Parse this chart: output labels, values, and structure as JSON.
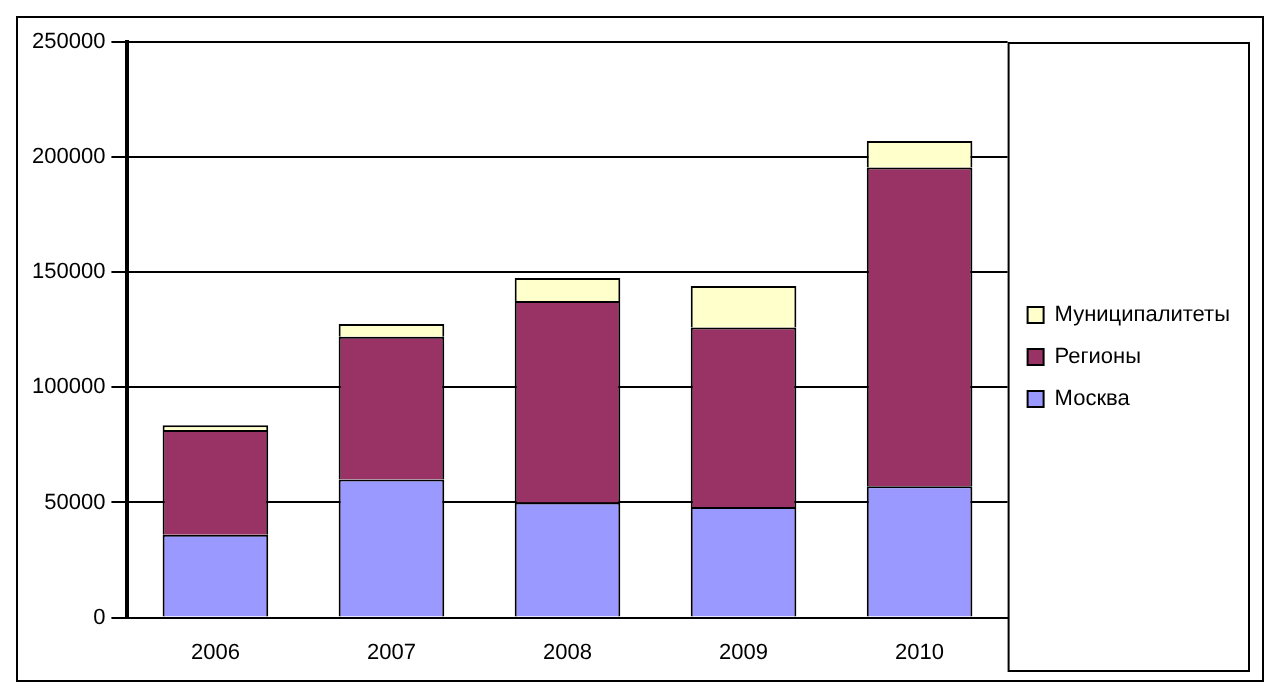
{
  "chart_data": {
    "type": "bar",
    "stacked": true,
    "categories": [
      "2006",
      "2007",
      "2008",
      "2009",
      "2010"
    ],
    "series": [
      {
        "name": "Москва",
        "color": "#9999ff",
        "values": [
          36000,
          60000,
          50000,
          48000,
          57000
        ]
      },
      {
        "name": "Регионы",
        "color": "#993366",
        "values": [
          45500,
          62000,
          87500,
          78000,
          138500
        ]
      },
      {
        "name": "Муниципалитеты",
        "color": "#ffffcc",
        "values": [
          2000,
          5500,
          10000,
          18000,
          11500
        ]
      }
    ],
    "ylim": [
      0,
      250000
    ],
    "yticks": [
      0,
      50000,
      100000,
      150000,
      200000,
      250000
    ],
    "grid": "y",
    "legend": "right"
  }
}
